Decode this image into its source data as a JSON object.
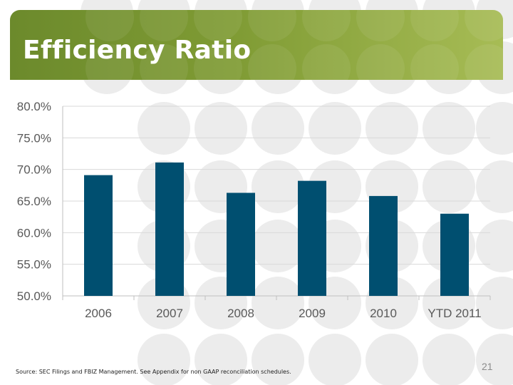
{
  "slide": {
    "title": "Efficiency Ratio",
    "source_note": "Source: SEC Filings and FBIZ Management. See Appendix for non GAAP reconciliation schedules.",
    "page_number": "21"
  },
  "colors": {
    "header_green": "#7f9b34",
    "bar": "#004f70",
    "pattern_circle": "#ececec",
    "axis_text": "#595959",
    "gridline": "#d9d9d9"
  },
  "chart_data": {
    "type": "bar",
    "title": "",
    "xlabel": "",
    "ylabel": "",
    "categories": [
      "2006",
      "2007",
      "2008",
      "2009",
      "2010",
      "YTD 2011"
    ],
    "values": [
      69.1,
      71.1,
      66.3,
      68.2,
      65.8,
      63.0
    ],
    "ylim": [
      50.0,
      80.0
    ],
    "yticks": [
      "50.0%",
      "55.0%",
      "60.0%",
      "65.0%",
      "70.0%",
      "75.0%",
      "80.0%"
    ],
    "grid": true,
    "legend": "none"
  }
}
